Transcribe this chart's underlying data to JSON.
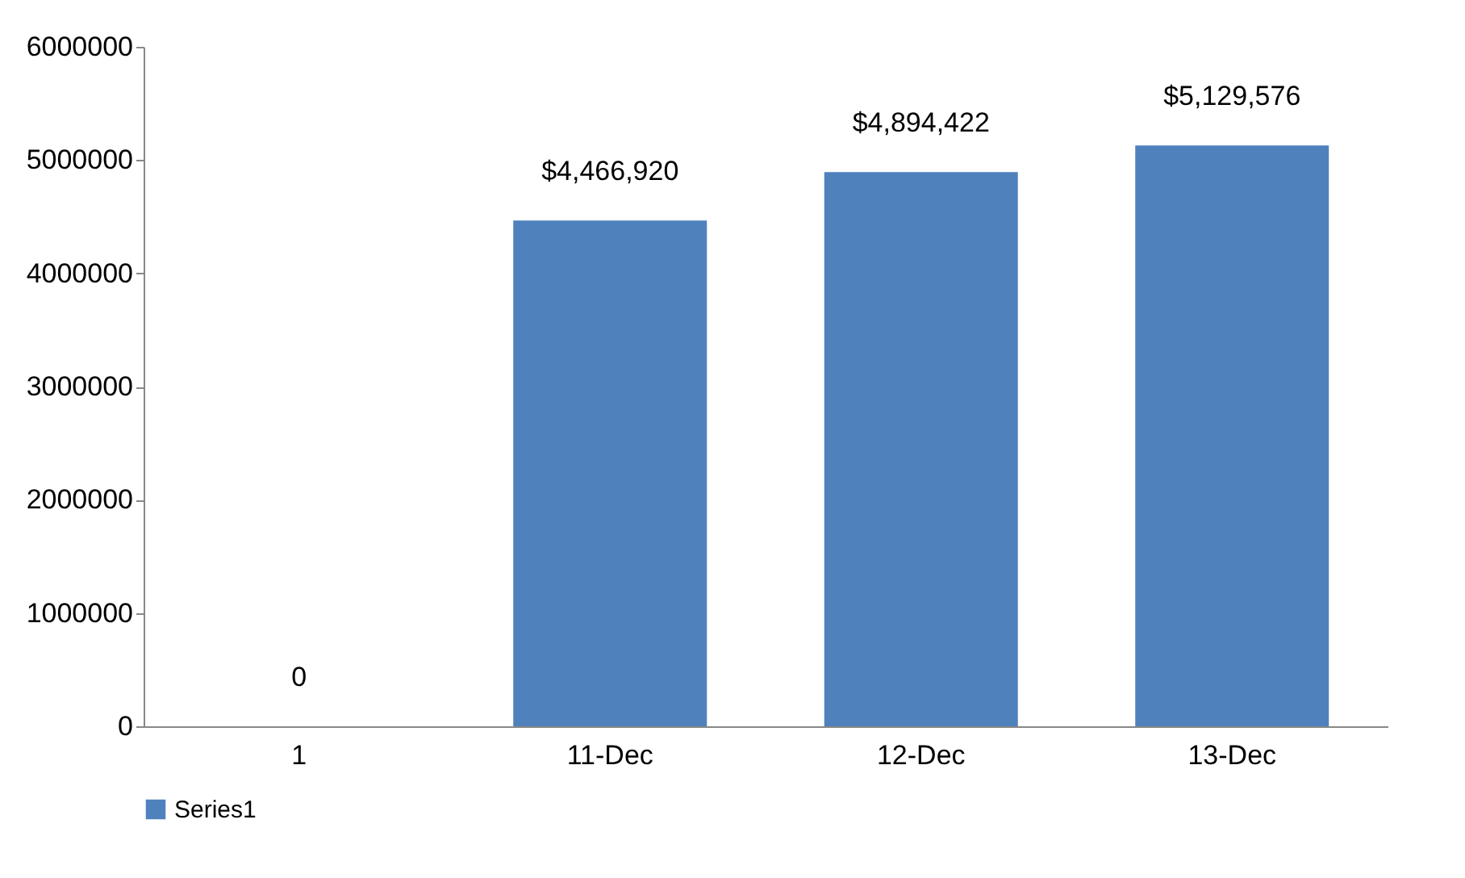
{
  "chart_data": {
    "type": "bar",
    "categories": [
      "1",
      "11-Dec",
      "12-Dec",
      "13-Dec"
    ],
    "series": [
      {
        "name": "Series1",
        "color": "#4f81bd",
        "values": [
          0,
          4466920,
          4894422,
          5129576
        ],
        "value_labels": [
          "0",
          "$4,466,920",
          "$4,894,422",
          "$5,129,576"
        ]
      }
    ],
    "ylim": [
      0,
      6000000
    ],
    "yticks": [
      0,
      1000000,
      2000000,
      3000000,
      4000000,
      5000000,
      6000000
    ],
    "grid": false,
    "legend": "bottom"
  }
}
